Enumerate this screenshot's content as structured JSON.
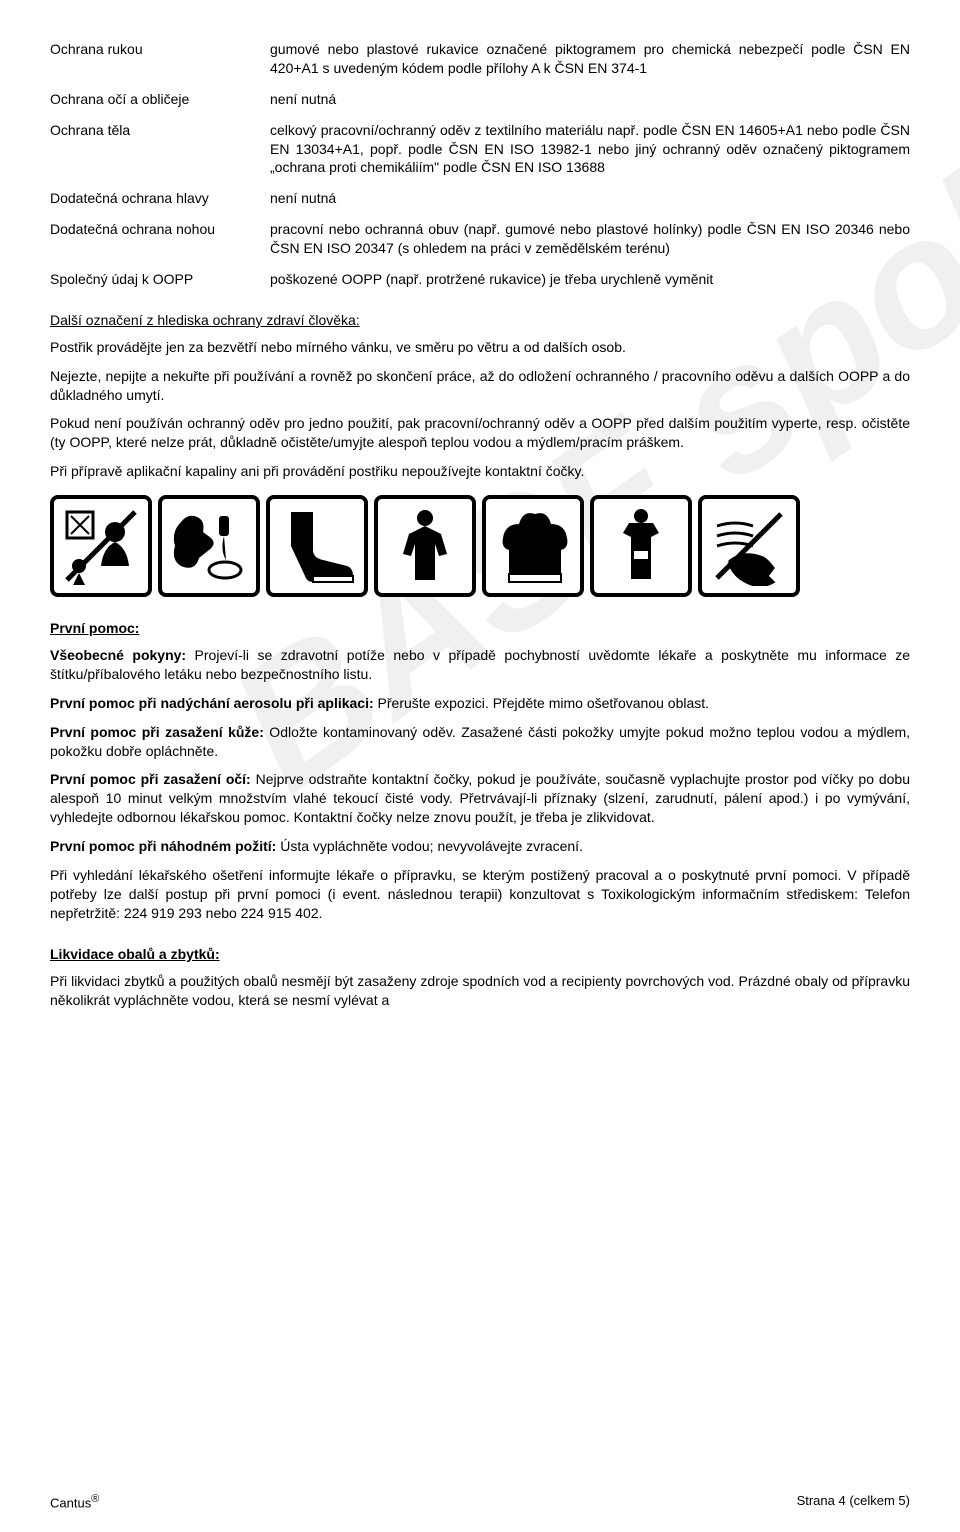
{
  "watermark": "BASF spol s. r. o.",
  "rows": [
    {
      "label": "Ochrana rukou",
      "value": "gumové nebo plastové rukavice označené piktogramem pro chemická nebezpečí podle ČSN EN 420+A1 s uvedeným kódem podle přílohy A k ČSN EN 374-1"
    },
    {
      "label": "Ochrana očí a obličeje",
      "value": "není nutná"
    },
    {
      "label": "Ochrana těla",
      "value": "celkový pracovní/ochranný oděv z textilního materiálu např. podle ČSN EN 14605+A1 nebo podle ČSN EN 13034+A1, popř. podle ČSN EN ISO 13982-1 nebo jiný ochranný oděv označený piktogramem „ochrana proti chemikáliím\" podle ČSN EN ISO 13688"
    },
    {
      "label": "Dodatečná ochrana hlavy",
      "value": "není nutná"
    },
    {
      "label": "Dodatečná ochrana nohou",
      "value": "pracovní nebo ochranná obuv (např. gumové nebo plastové holínky) podle ČSN EN ISO 20346 nebo ČSN EN ISO 20347 (s ohledem na práci v zemědělském terénu)"
    },
    {
      "label": "Společný údaj k OOPP",
      "value": "poškozené OOPP (např. protržené rukavice) je třeba urychleně vyměnit"
    }
  ],
  "section1_title": "Další označení z hlediska ochrany zdraví člověka:",
  "paras1": [
    "Postřik provádějte jen za bezvětří nebo mírného vánku, ve směru po větru a od dalších osob.",
    "Nejezte, nepijte a nekuřte při používání a rovněž po skončení práce, až do odložení ochranného / pracovního oděvu a dalších OOPP a do důkladného umytí.",
    "Pokud není používán ochranný oděv pro jedno použití, pak pracovní/ochranný oděv a OOPP před dalším použitím vyperte, resp. očistěte (ty OOPP, které nelze prát, důkladně očistěte/umyjte alespoň teplou vodou a mýdlem/pracím práškem.",
    "Při přípravě aplikační kapaliny ani při provádění postřiku nepoužívejte kontaktní čočky."
  ],
  "section2_title": "První pomoc:",
  "first_aid": [
    {
      "lead": "Všeobecné pokyny:",
      "text": " Projeví-li se zdravotní potíže nebo v případě pochybností uvědomte lékaře a poskytněte mu informace ze štítku/příbalového letáku nebo bezpečnostního listu."
    },
    {
      "lead": "První pomoc při nadýchání aerosolu při aplikaci:",
      "text": " Přerušte expozici. Přejděte mimo ošetřovanou oblast."
    },
    {
      "lead": "První pomoc při zasažení kůže:",
      "text": " Odložte kontaminovaný oděv. Zasažené části pokožky umyjte pokud možno teplou vodou a mýdlem, pokožku dobře opláchněte."
    },
    {
      "lead": "První pomoc při zasažení očí:",
      "text": " Nejprve odstraňte kontaktní čočky, pokud je používáte, současně vyplachujte prostor pod víčky po dobu alespoň 10 minut velkým množstvím vlahé tekoucí čisté vody. Přetrvávají-li příznaky (slzení, zarudnutí, pálení apod.) i po vymývání, vyhledejte odbornou lékařskou pomoc. Kontaktní čočky nelze znovu použít, je třeba je zlikvidovat."
    },
    {
      "lead": "První pomoc při náhodném požití:",
      "text": " Ústa vypláchněte vodou; nevyvolávejte zvracení."
    }
  ],
  "para_after": "Při vyhledání lékařského ošetření informujte lékaře o přípravku, se kterým postižený pracoval a o poskytnuté první pomoci. V případě potřeby lze další postup při první pomoci (i event. následnou terapii) konzultovat s Toxikologickým informačním střediskem: Telefon nepřetržitě: 224 919 293 nebo 224 915 402.",
  "section3_title": "Likvidace obalů a zbytků:",
  "para3": "Při likvidaci zbytků a použitých obalů nesmějí být zasaženy zdroje spodních vod a recipienty povrchových vod. Prázdné obaly od přípravku několikrát vypláchněte vodou, která se nesmí vylévat a",
  "footer_left": "Cantus",
  "footer_reg": "®",
  "footer_right": "Strana 4 (celkem 5)"
}
